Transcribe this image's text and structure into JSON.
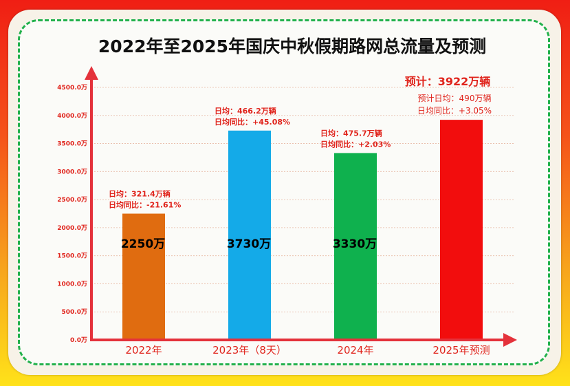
{
  "chart_data": {
    "type": "bar",
    "title": "2022年至2025年国庆中秋假期路网总流量及预测",
    "categories": [
      "2022年",
      "2023年（8天）",
      "2024年",
      "2025年预测"
    ],
    "values": [
      2250,
      3730,
      3330,
      3922
    ],
    "value_labels": [
      "2250万",
      "3730万",
      "3330万",
      ""
    ],
    "colors": [
      "#e06c10",
      "#14aae8",
      "#0fb14e",
      "#f20d0d"
    ],
    "ylim": [
      0,
      4500
    ],
    "yticks": [
      "0.0万",
      "500.0万",
      "1000.0万",
      "1500.0万",
      "2000.0万",
      "2500.0万",
      "3000.0万",
      "3500.0万",
      "4000.0万",
      "4500.0万"
    ],
    "grid": true,
    "annotations": [
      {
        "line1": "日均：321.4万辆",
        "line2": "日均同比：-21.61%"
      },
      {
        "line1": "日均：466.2万辆",
        "line2": "日均同比：+45.08%"
      },
      {
        "line1": "日均：475.7万辆",
        "line2": "日均同比：+2.03%"
      },
      {
        "head": "预计：3922万辆",
        "line1": "预计日均：490万辆",
        "line2": "日均同比：+3.05%"
      }
    ]
  }
}
